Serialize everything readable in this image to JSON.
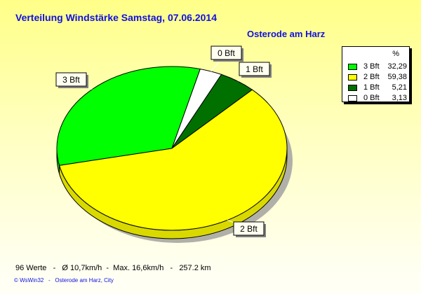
{
  "chart_data": {
    "type": "pie",
    "title": "Verteilung Windstärke  Samstag, 07.06.2014",
    "subtitle": "Osterode am Harz",
    "legend_header": "%",
    "legend_placement": "top-right",
    "slices": [
      {
        "label": "3 Bft",
        "value": 32.29,
        "display": "32,29",
        "color": "#00ff00"
      },
      {
        "label": "0 Bft",
        "value": 3.13,
        "display": "3,13",
        "color": "#ffffff"
      },
      {
        "label": "1 Bft",
        "value": 5.21,
        "display": "5,21",
        "color": "#007000"
      },
      {
        "label": "2 Bft",
        "value": 59.38,
        "display": "59,38",
        "color": "#ffff00"
      }
    ],
    "legend_order": [
      0,
      3,
      2,
      1
    ]
  },
  "footer": {
    "stats": "96 Werte   -   Ø 10,7km/h  -  Max. 16,6km/h   -   257.2 km",
    "credit": "© WsWin32   -   Osterode am Harz, City"
  }
}
